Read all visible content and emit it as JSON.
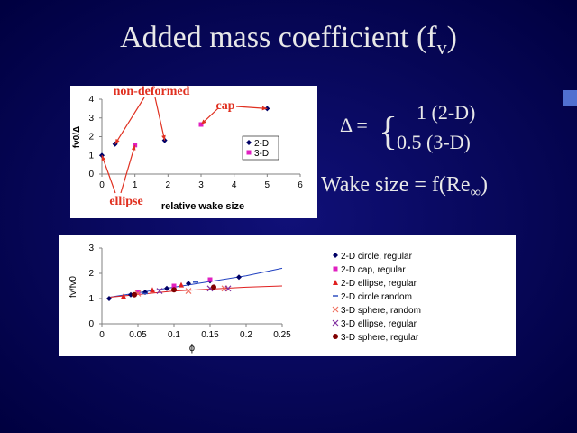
{
  "slide": {
    "title": "Added mass coefficient (f",
    "title_sub": "v",
    "title_end": ")",
    "delta": "Δ =",
    "brace": "{",
    "case_2d": "1 (2-D)",
    "case_3d": "0.5 (3-D)",
    "wake": "Wake size = f(Re",
    "wake_sub": "∞",
    "wake_end": ")"
  },
  "chart_data": [
    {
      "type": "scatter",
      "y_label": "fv0/Δ",
      "x_label": "relative wake size",
      "xlim": [
        0,
        6
      ],
      "ylim": [
        0,
        4
      ],
      "xticks": [
        0,
        1,
        2,
        3,
        4,
        5,
        6
      ],
      "yticks": [
        0,
        1,
        2,
        3,
        4
      ],
      "annotations": [
        "non-deformed",
        "cap",
        "ellipse"
      ],
      "annotation_color": "#e03020",
      "series": [
        {
          "name": "2-D",
          "color": "#000066",
          "marker": "diamond",
          "x": [
            0,
            0.4,
            1.9,
            5.0
          ],
          "values": [
            1.0,
            1.6,
            1.8,
            3.5
          ]
        },
        {
          "name": "3-D",
          "color": "#e020c0",
          "marker": "square",
          "x": [
            1.0,
            3.0
          ],
          "values": [
            1.55,
            2.65
          ]
        }
      ]
    },
    {
      "type": "scatter",
      "y_label": "fv/fv0",
      "x_label": "ϕ",
      "xlim": [
        0,
        0.25
      ],
      "ylim": [
        0,
        3
      ],
      "xticks": [
        0,
        0.05,
        0.1,
        0.15,
        0.2,
        0.25
      ],
      "yticks": [
        0,
        1,
        2,
        3
      ],
      "series": [
        {
          "name": "2-D circle, regular",
          "color": "#000066",
          "marker": "diamond",
          "x": [
            0.01,
            0.04,
            0.06,
            0.09,
            0.12,
            0.15,
            0.19
          ],
          "values": [
            1.0,
            1.15,
            1.25,
            1.4,
            1.6,
            1.7,
            1.85
          ]
        },
        {
          "name": "2-D cap, regular",
          "color": "#e020c0",
          "marker": "square",
          "x": [
            0.05,
            0.1,
            0.15
          ],
          "values": [
            1.25,
            1.5,
            1.75
          ]
        },
        {
          "name": "2-D ellipse, regular",
          "color": "#e02020",
          "marker": "triangle",
          "x": [
            0.03,
            0.07,
            0.11
          ],
          "values": [
            1.1,
            1.35,
            1.55
          ]
        },
        {
          "name": "2-D circle random",
          "color": "#3050c0",
          "marker": "dash",
          "x": [
            0.06,
            0.13
          ],
          "values": [
            1.2,
            1.65
          ]
        },
        {
          "name": "3-D sphere, random",
          "color": "#f07060",
          "marker": "x",
          "x": [
            0.05,
            0.12,
            0.17
          ],
          "values": [
            1.2,
            1.3,
            1.4
          ]
        },
        {
          "name": "3-D ellipse, regular",
          "color": "#8030a0",
          "marker": "x",
          "x": [
            0.08,
            0.15,
            0.175
          ],
          "values": [
            1.3,
            1.4,
            1.4
          ]
        },
        {
          "name": "3-D sphere, regular",
          "color": "#800000",
          "marker": "circle",
          "x": [
            0.045,
            0.1,
            0.155
          ],
          "values": [
            1.15,
            1.35,
            1.45
          ]
        }
      ],
      "trendlines": [
        {
          "color": "#2040c0",
          "x": [
            0.01,
            0.1,
            0.2,
            0.25
          ],
          "values": [
            1.05,
            1.45,
            1.9,
            2.2
          ]
        },
        {
          "color": "#e02020",
          "x": [
            0.01,
            0.1,
            0.2,
            0.25
          ],
          "values": [
            1.05,
            1.3,
            1.45,
            1.5
          ]
        }
      ]
    }
  ]
}
